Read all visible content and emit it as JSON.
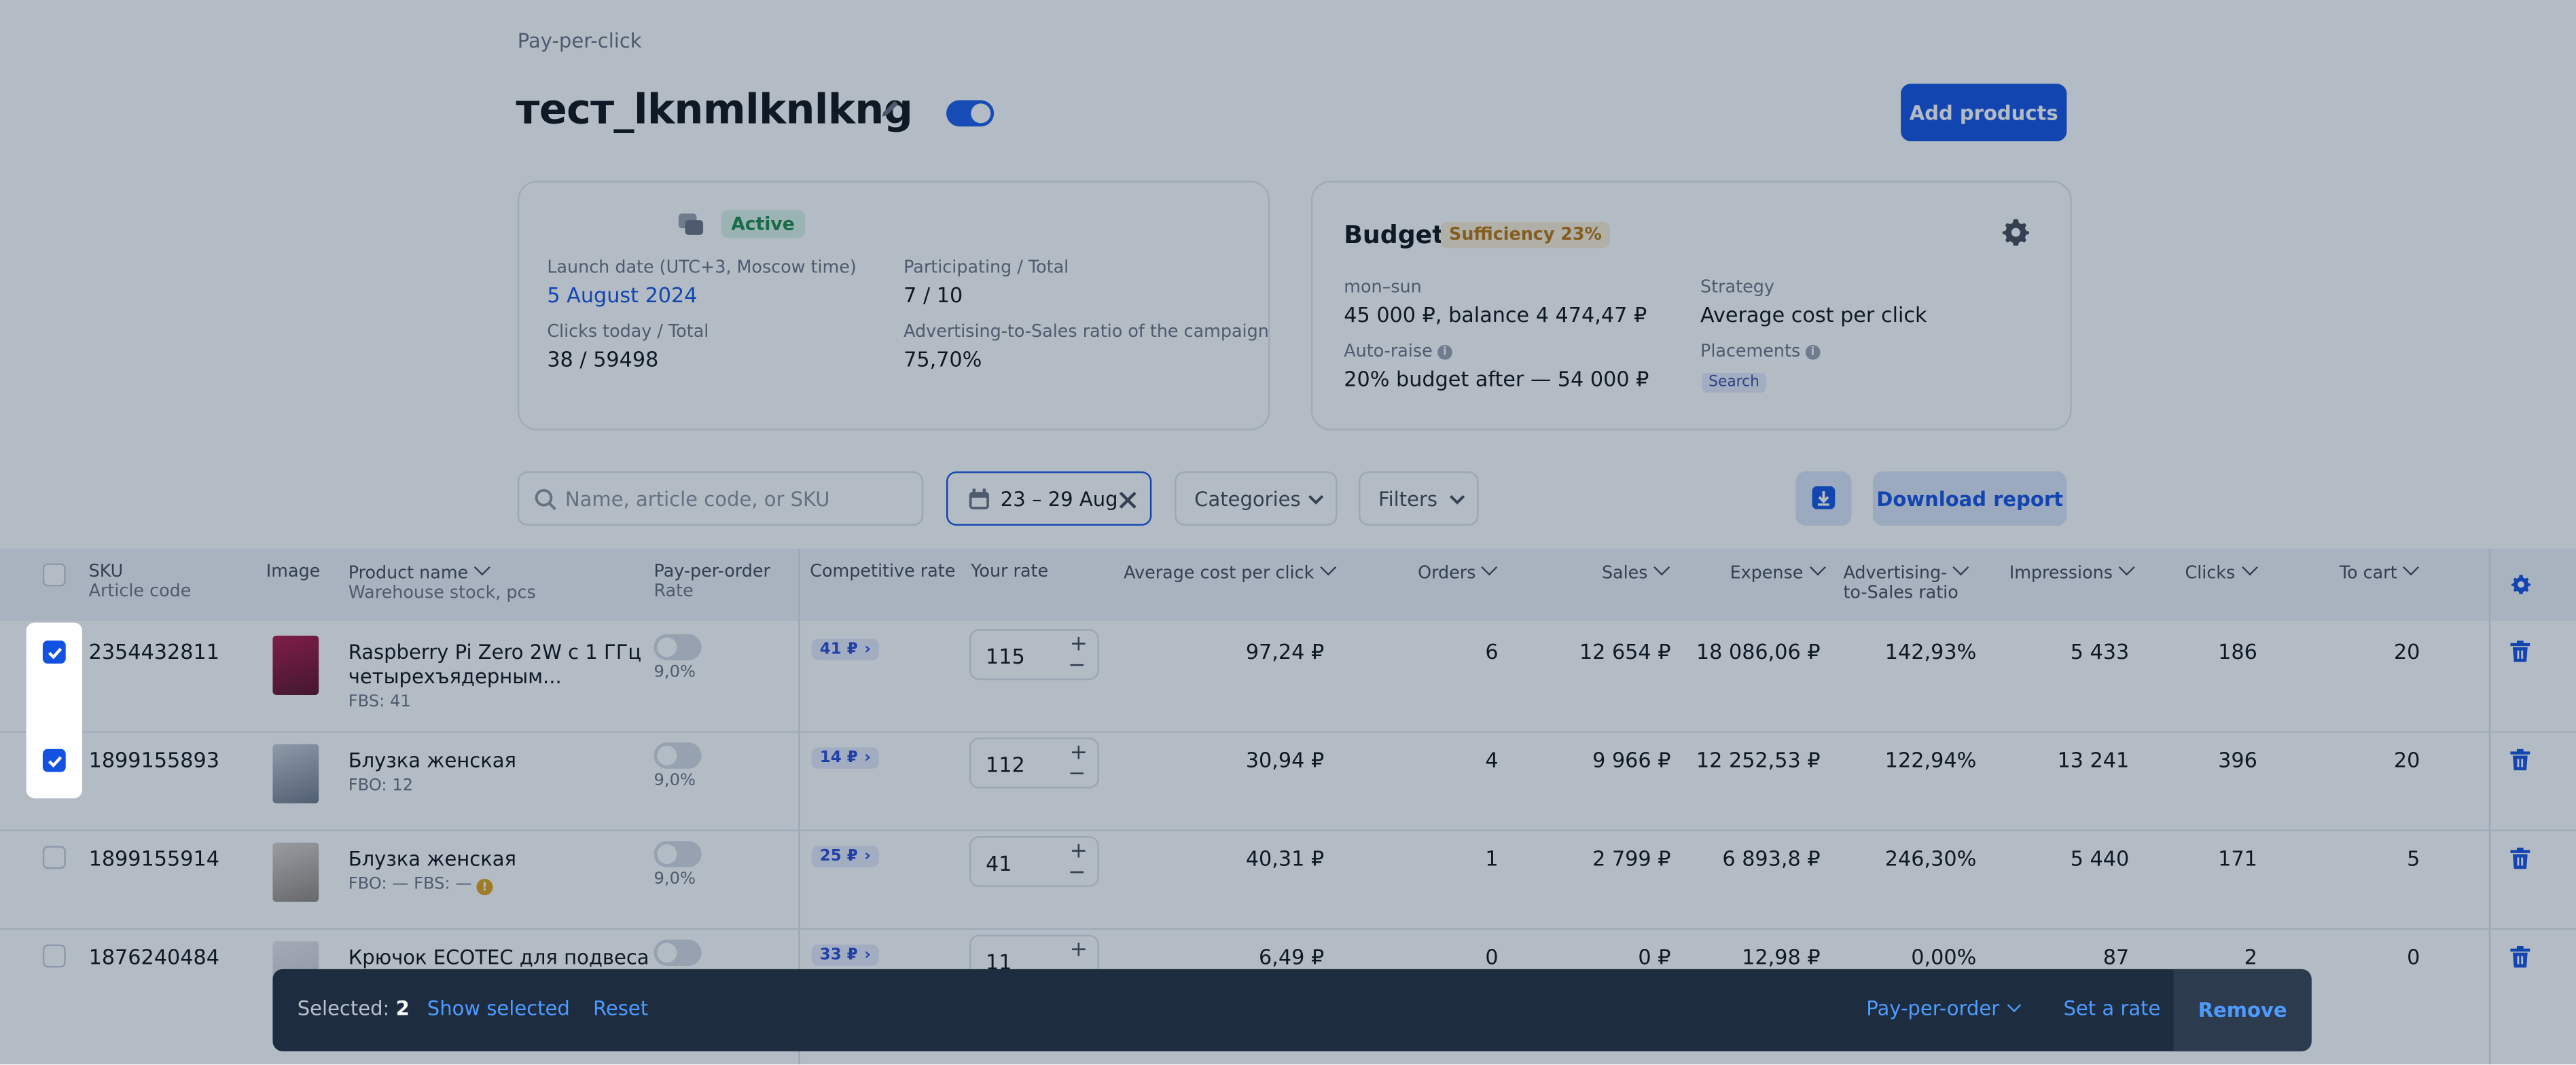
{
  "header": {
    "breadcrumb": "Pay-per-click",
    "campaign_title": "тест_lknmlknlkng",
    "add_products": "Add products"
  },
  "campaign": {
    "status": "Active",
    "launch_label": "Launch date (UTC+3, Moscow time)",
    "launch_value": "5 August 2024",
    "participating_label": "Participating / Total",
    "participating_value": "7 / 10",
    "clicks_label": "Clicks today / Total",
    "clicks_value": "38 / 59498",
    "ratio_label": "Advertising-to-Sales ratio of the campaign",
    "ratio_value": "75,70%"
  },
  "budget": {
    "title": "Budget",
    "sufficiency": "Sufficiency 23%",
    "period_label": "mon–sun",
    "period_value": "45 000 ₽, balance 4 474,47 ₽",
    "strategy_label": "Strategy",
    "strategy_value": "Average cost per click",
    "autoraise_label": "Auto-raise",
    "autoraise_value": "20% budget after — 54 000 ₽",
    "placements_label": "Placements",
    "placement_tag": "Search"
  },
  "toolbar": {
    "search_placeholder": "Name, article code, or SKU",
    "date_range": "23 – 29 Aug",
    "categories": "Categories",
    "filters": "Filters",
    "download_report": "Download report"
  },
  "columns": {
    "sku": "SKU",
    "article_code": "Article code",
    "image": "Image",
    "product_name": "Product name",
    "warehouse": "Warehouse stock, pcs",
    "ppo": "Pay-per-order",
    "rate": "Rate",
    "competitive": "Competitive rate",
    "your_rate": "Your rate",
    "avg_cpc": "Average cost per click",
    "orders": "Orders",
    "sales": "Sales",
    "expense": "Expense",
    "adv_ratio_1": "Advertising-",
    "adv_ratio_2": "to-Sales ratio",
    "impressions": "Impressions",
    "clicks": "Clicks",
    "to_cart": "To cart"
  },
  "rows": [
    {
      "sku": "2354432811",
      "checked": true,
      "name_line1": "Raspberry Pi Zero 2W с 1 ГГц",
      "name_line2": "четырехъядерным...",
      "stock": "FBS: 41",
      "ppo_toggle": false,
      "ppo_rate": "9,0%",
      "competitive": "41 ₽",
      "your_rate": "115",
      "avg_cpc": "97,24 ₽",
      "orders": "6",
      "sales": "12 654 ₽",
      "expense": "18 086,06 ₽",
      "adv_ratio": "142,93%",
      "impressions": "5 433",
      "clicks": "186",
      "to_cart": "20"
    },
    {
      "sku": "1899155893",
      "checked": true,
      "name_line1": "Блузка женская",
      "name_line2": "",
      "stock": "FBO: 12",
      "ppo_toggle": false,
      "ppo_rate": "9,0%",
      "competitive": "14 ₽",
      "your_rate": "112",
      "avg_cpc": "30,94 ₽",
      "orders": "4",
      "sales": "9 966 ₽",
      "expense": "12 252,53 ₽",
      "adv_ratio": "122,94%",
      "impressions": "13 241",
      "clicks": "396",
      "to_cart": "20"
    },
    {
      "sku": "1899155914",
      "checked": false,
      "name_line1": "Блузка женская",
      "name_line2": "",
      "stock": "FBO: —   FBS: —",
      "ppo_toggle": false,
      "ppo_rate": "9,0%",
      "competitive": "25 ₽",
      "your_rate": "41",
      "avg_cpc": "40,31 ₽",
      "orders": "1",
      "sales": "2 799 ₽",
      "expense": "6 893,8 ₽",
      "adv_ratio": "246,30%",
      "impressions": "5 440",
      "clicks": "171",
      "to_cart": "5"
    },
    {
      "sku": "1876240484",
      "checked": false,
      "name_line1": "Крючок ECOTEC для подвеса",
      "name_line2": "",
      "stock": "",
      "ppo_toggle": false,
      "ppo_rate": "",
      "competitive": "33 ₽",
      "your_rate": "11",
      "avg_cpc": "6,49 ₽",
      "orders": "0",
      "sales": "0 ₽",
      "expense": "12,98 ₽",
      "adv_ratio": "0,00%",
      "impressions": "87",
      "clicks": "2",
      "to_cart": "0"
    }
  ],
  "selection_bar": {
    "selected_label": "Selected:",
    "selected_count": "2",
    "show_selected": "Show selected",
    "reset": "Reset",
    "pay_per_order": "Pay-per-order",
    "set_rate": "Set a rate",
    "remove": "Remove"
  },
  "colors": {
    "accent": "#1352e0",
    "active_badge": "#1e8a4a",
    "sufficiency_badge": "#b9770e",
    "bar_background": "#1d2c3e"
  }
}
